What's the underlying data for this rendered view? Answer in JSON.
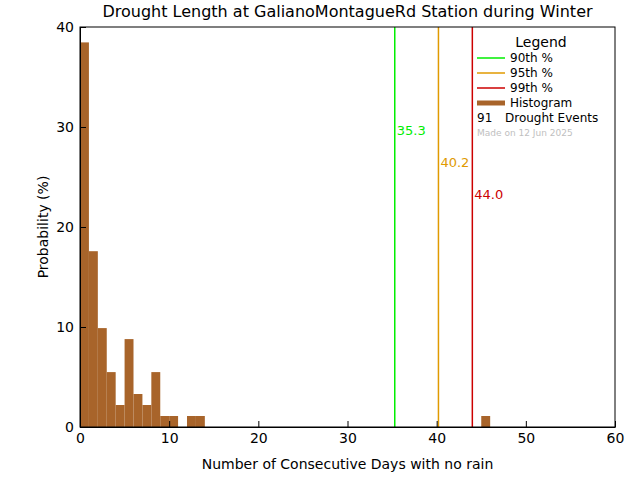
{
  "chart_data": {
    "type": "histogram",
    "title": "Drought Length at GalianoMontagueRd Station during Winter",
    "x_label": "Number of Consecutive Days with no rain",
    "y_label": "Probability (%)",
    "xlim": [
      0,
      60
    ],
    "ylim": [
      0,
      40
    ],
    "xticks": [
      0,
      10,
      20,
      30,
      40,
      50,
      60
    ],
    "yticks": [
      0,
      10,
      20,
      30,
      40
    ],
    "bins": [
      0,
      1,
      2,
      3,
      4,
      5,
      6,
      7,
      8,
      9,
      10,
      11,
      12,
      13,
      14,
      15,
      16,
      17,
      18,
      19,
      20,
      21,
      22,
      23,
      24,
      25,
      26,
      27,
      28,
      29,
      30,
      31,
      32,
      33,
      34,
      35,
      36,
      37,
      38,
      39,
      40,
      41,
      42,
      43,
      44,
      45,
      46
    ],
    "series": [
      {
        "name": "Histogram",
        "color": "#a8642a",
        "values": [
          38.46,
          17.58,
          9.89,
          5.49,
          2.2,
          8.79,
          3.3,
          2.2,
          5.49,
          1.1,
          1.1,
          0,
          1.1,
          1.1,
          0,
          0,
          0,
          0,
          0,
          0,
          0,
          0,
          0,
          0,
          0,
          0,
          0,
          0,
          0,
          0,
          0,
          0,
          0,
          0,
          0,
          0,
          0,
          0,
          0,
          0,
          0,
          0,
          0,
          0,
          0,
          1.1
        ]
      }
    ],
    "percentiles": [
      {
        "name": "90th %",
        "color": "#00ee00",
        "value": 35.3,
        "label": "35.3"
      },
      {
        "name": "95th %",
        "color": "#e09a00",
        "value": 40.2,
        "label": "40.2"
      },
      {
        "name": "99th %",
        "color": "#cc0000",
        "value": 44.0,
        "label": "44.0"
      }
    ],
    "legend": "top-right",
    "legend_title": "Legend",
    "events": {
      "count": 91,
      "label": "Drought Events"
    },
    "footnote": "Made on 12 Jun 2025"
  }
}
